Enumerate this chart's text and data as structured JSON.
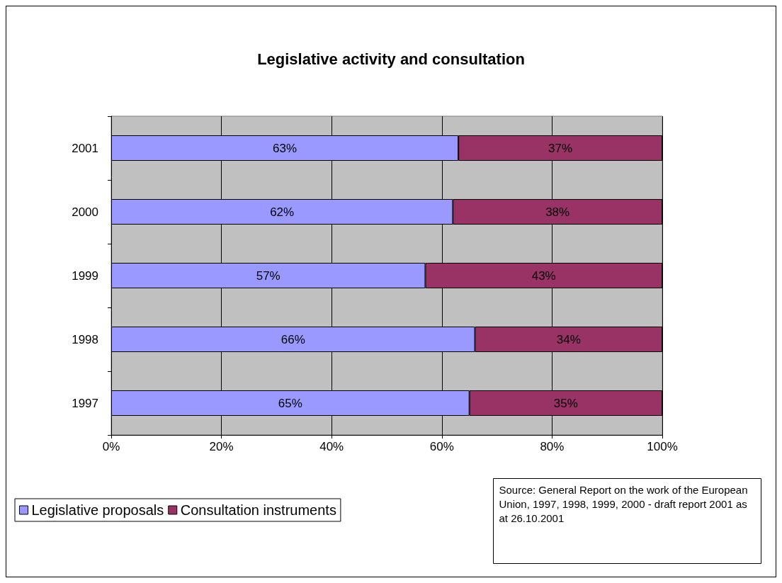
{
  "chart_data": {
    "type": "bar",
    "orientation": "horizontal",
    "stacked": true,
    "title": "Legislative activity and consultation",
    "categories": [
      "2001",
      "2000",
      "1999",
      "1998",
      "1997"
    ],
    "series": [
      {
        "name": "Legislative proposals",
        "color": "#9999ff",
        "values": [
          63,
          62,
          57,
          66,
          65
        ],
        "value_labels": [
          "63%",
          "62%",
          "57%",
          "66%",
          "65%"
        ]
      },
      {
        "name": "Consultation instruments",
        "color": "#993366",
        "values": [
          37,
          38,
          43,
          34,
          35
        ],
        "value_labels": [
          "37%",
          "38%",
          "43%",
          "34%",
          "35%"
        ]
      }
    ],
    "xlim": [
      0,
      100
    ],
    "xticks": [
      {
        "value": 0,
        "label": "0%"
      },
      {
        "value": 20,
        "label": "20%"
      },
      {
        "value": 40,
        "label": "40%"
      },
      {
        "value": 60,
        "label": "60%"
      },
      {
        "value": 80,
        "label": "80%"
      },
      {
        "value": 100,
        "label": "100%"
      }
    ],
    "grid": "x",
    "legend": "bottom left",
    "annotations": [
      "Source: General Report on the work of the European Union, 1997, 1998, 1999, 2000 - draft report 2001 as at 26.10.2001"
    ]
  }
}
